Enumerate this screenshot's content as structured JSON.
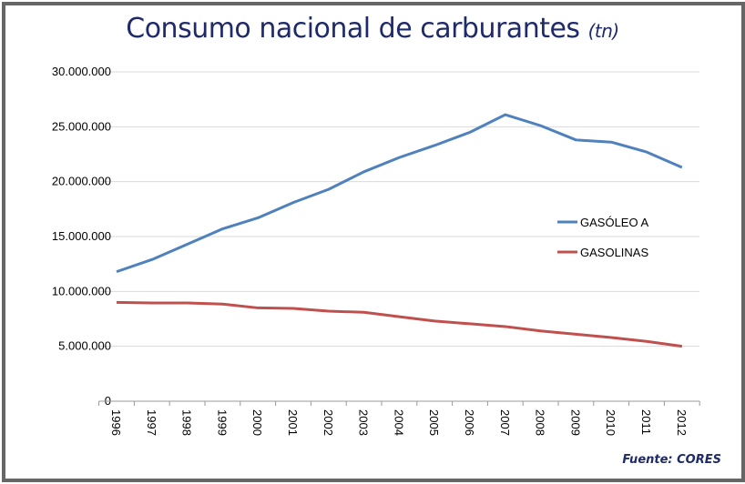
{
  "chart_data": {
    "type": "line",
    "title": "Consumo nacional de carburantes",
    "title_unit": "(tn)",
    "source": "Fuente: CORES",
    "categories": [
      "1996",
      "1997",
      "1998",
      "1999",
      "2000",
      "2001",
      "2002",
      "2003",
      "2004",
      "2005",
      "2006",
      "2007",
      "2008",
      "2009",
      "2010",
      "2011",
      "2012"
    ],
    "series": [
      {
        "name": "GASÓLEO A",
        "color": "#4f81bd",
        "values": [
          11800000,
          12900000,
          14300000,
          15700000,
          16700000,
          18100000,
          19300000,
          20900000,
          22200000,
          23300000,
          24500000,
          26100000,
          25100000,
          23800000,
          23600000,
          22700000,
          21300000
        ]
      },
      {
        "name": "GASOLINAS",
        "color": "#c0504d",
        "values": [
          9000000,
          8950000,
          8950000,
          8850000,
          8500000,
          8450000,
          8200000,
          8100000,
          7700000,
          7300000,
          7050000,
          6800000,
          6400000,
          6100000,
          5800000,
          5450000,
          5000000
        ]
      }
    ],
    "yticks": [
      "0",
      "5.000.000",
      "10.000.000",
      "15.000.000",
      "20.000.000",
      "25.000.000",
      "30.000.000"
    ],
    "ylim": [
      0,
      30000000
    ],
    "grid": true,
    "legend_position": "right"
  }
}
